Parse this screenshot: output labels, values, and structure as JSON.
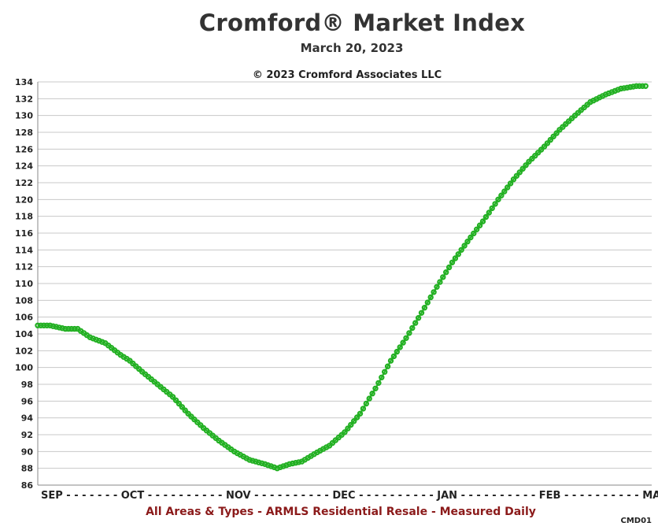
{
  "title": "Cromford® Market Index",
  "subtitle": "March 20, 2023",
  "copyright": "© 2023 Cromford Associates LLC",
  "footer": "All Areas & Types - ARMLS Residential Resale - Measured Daily",
  "code": "CMD01",
  "colors": {
    "line": "#22b022",
    "grid": "#c8c8c8",
    "footer_text": "#8b1a1a"
  },
  "chart_data": {
    "type": "line",
    "title": "Cromford® Market Index",
    "subtitle": "March 20, 2023",
    "ylim": [
      86,
      134
    ],
    "yticks": [
      86,
      88,
      90,
      92,
      94,
      96,
      98,
      100,
      102,
      104,
      106,
      108,
      110,
      112,
      114,
      116,
      118,
      120,
      122,
      124,
      126,
      128,
      130,
      132,
      134
    ],
    "xtick_labels": [
      "SEP",
      "OCT",
      "NOV",
      "DEC",
      "JAN",
      "FEB",
      "MAR"
    ],
    "xtick_display": "SEP - - - - - - - OCT - - - - - - - - - - NOV - - - - - - - - - - DEC - - - - - - - - - - JAN - - - - - - - - - - FEB - - - - - - - - - - MAR -",
    "grid": true,
    "legend": "none",
    "series": [
      {
        "points": [
          [
            "2022-09-01",
            105.0
          ],
          [
            "2022-09-05",
            105.0
          ],
          [
            "2022-09-10",
            104.6
          ],
          [
            "2022-09-14",
            104.6
          ],
          [
            "2022-09-18",
            103.6
          ],
          [
            "2022-09-23",
            102.9
          ],
          [
            "2022-09-28",
            101.5
          ],
          [
            "2022-10-01",
            100.8
          ],
          [
            "2022-10-05",
            99.5
          ],
          [
            "2022-10-10",
            98.0
          ],
          [
            "2022-10-15",
            96.5
          ],
          [
            "2022-10-20",
            94.5
          ],
          [
            "2022-10-25",
            92.8
          ],
          [
            "2022-10-30",
            91.3
          ],
          [
            "2022-11-04",
            90.0
          ],
          [
            "2022-11-09",
            89.0
          ],
          [
            "2022-11-14",
            88.5
          ],
          [
            "2022-11-18",
            88.0
          ],
          [
            "2022-11-22",
            88.5
          ],
          [
            "2022-11-26",
            88.8
          ],
          [
            "2022-12-01",
            89.9
          ],
          [
            "2022-12-05",
            90.7
          ],
          [
            "2022-12-10",
            92.3
          ],
          [
            "2022-12-15",
            94.5
          ],
          [
            "2022-12-20",
            97.5
          ],
          [
            "2022-12-25",
            100.8
          ],
          [
            "2022-12-30",
            103.5
          ],
          [
            "2023-01-04",
            106.5
          ],
          [
            "2023-01-09",
            109.6
          ],
          [
            "2023-01-14",
            112.5
          ],
          [
            "2023-01-19",
            115.0
          ],
          [
            "2023-01-24",
            117.4
          ],
          [
            "2023-01-29",
            120.0
          ],
          [
            "2023-02-03",
            122.4
          ],
          [
            "2023-02-08",
            124.5
          ],
          [
            "2023-02-13",
            126.3
          ],
          [
            "2023-02-18",
            128.3
          ],
          [
            "2023-02-23",
            130.0
          ],
          [
            "2023-02-28",
            131.6
          ],
          [
            "2023-03-05",
            132.5
          ],
          [
            "2023-03-10",
            133.2
          ],
          [
            "2023-03-15",
            133.5
          ],
          [
            "2023-03-18",
            133.5
          ]
        ]
      }
    ]
  }
}
